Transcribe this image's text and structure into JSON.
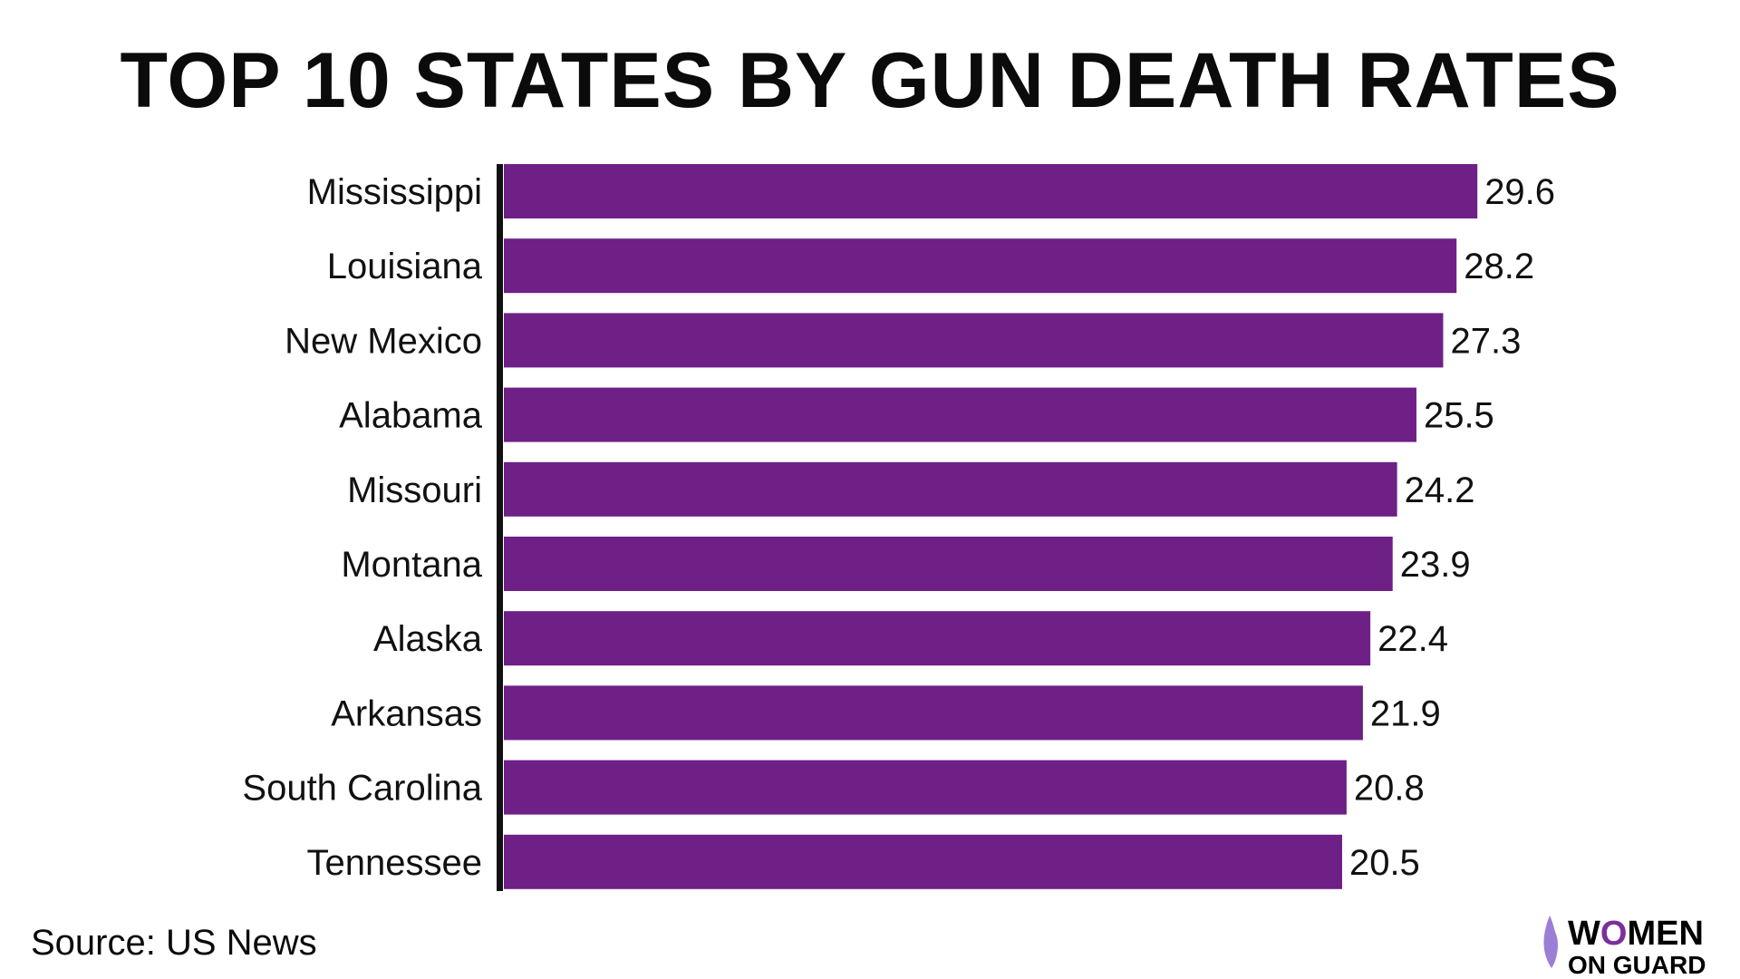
{
  "chart_data": {
    "type": "bar",
    "orientation": "horizontal",
    "title": "TOP 10 STATES BY GUN DEATH RATES",
    "categories": [
      "Mississippi",
      "Louisiana",
      "New Mexico",
      "Alabama",
      "Missouri",
      "Montana",
      "Alaska",
      "Arkansas",
      "South Carolina",
      "Tennessee"
    ],
    "values": [
      29.6,
      28.2,
      27.3,
      25.5,
      24.2,
      23.9,
      22.4,
      21.9,
      20.8,
      20.5
    ],
    "data_labels": [
      "29.6",
      "28.2",
      "27.3",
      "25.5",
      "24.2",
      "23.9",
      "22.4",
      "21.9",
      "20.8",
      "20.5"
    ],
    "xlabel": "",
    "ylabel": "",
    "grid": false,
    "bar_color": "#6e2086",
    "axis_color": "#111111"
  },
  "source": "Source: US News",
  "logo": {
    "line1": "WOMEN",
    "line2": "ON GUARD",
    "accent": "#7a2f9a"
  }
}
